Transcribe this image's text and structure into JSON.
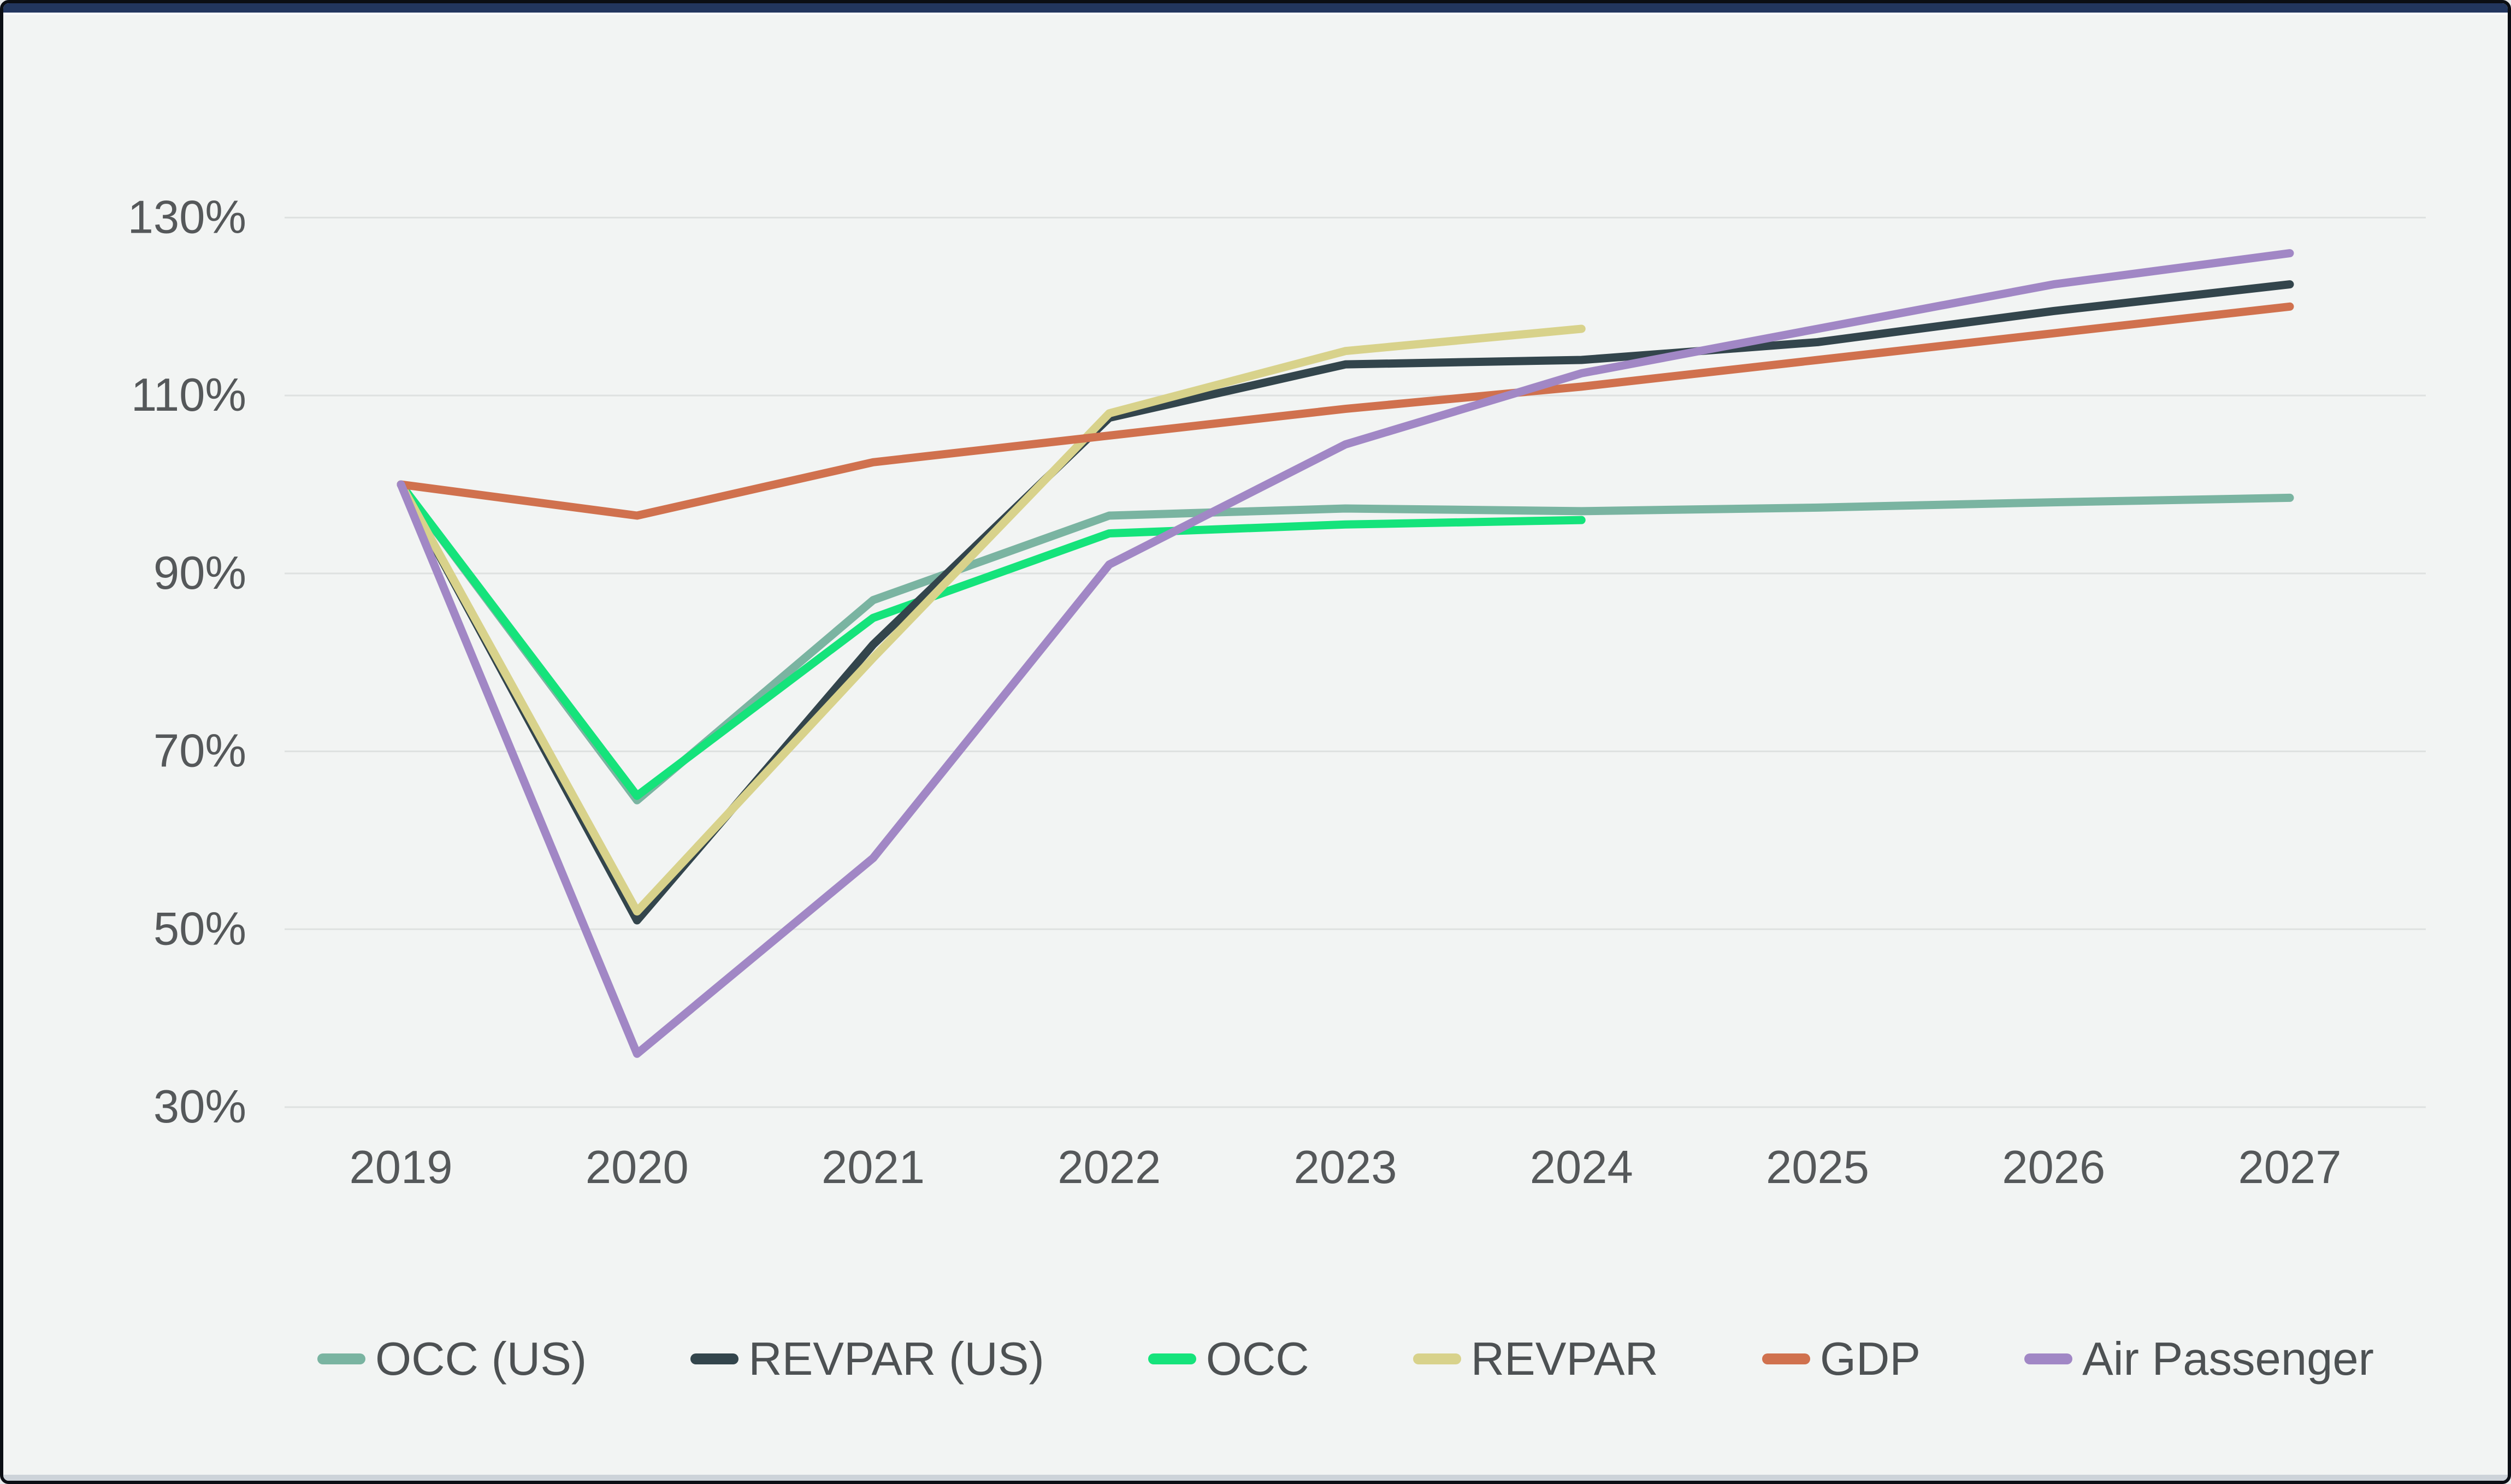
{
  "window": {
    "topbar_color": "#22365e",
    "background_color": "#f2f4f3",
    "border_color": "#0b0e14",
    "bottom_strip_color": "#cdd3d9"
  },
  "chart_data": {
    "type": "line",
    "title": "",
    "xlabel": "",
    "ylabel": "",
    "unit": "%",
    "grid": true,
    "legend_position": "bottom",
    "x_labels": [
      "2019",
      "2020",
      "2021",
      "2022",
      "2023",
      "2024",
      "2025",
      "2026",
      "2027"
    ],
    "y_axis": {
      "range": [
        30,
        130
      ],
      "ticks": [
        {
          "value": 130,
          "label": "130%"
        },
        {
          "value": 110,
          "label": "110%"
        },
        {
          "value": 90,
          "label": "90%"
        },
        {
          "value": 70,
          "label": "70%"
        },
        {
          "value": 50,
          "label": "50%"
        },
        {
          "value": 30,
          "label": "30%"
        }
      ]
    },
    "series": [
      {
        "name": "OCC (US)",
        "color": "#7ab4a1",
        "values": [
          100,
          64.5,
          87,
          96.5,
          97.3,
          97,
          97.4,
          98,
          98.5
        ]
      },
      {
        "name": "REVPAR (US)",
        "color": "#33454c",
        "values": [
          100,
          51,
          82,
          107.5,
          113.5,
          114,
          116,
          119.5,
          122.5
        ]
      },
      {
        "name": "OCC",
        "color": "#15e37b",
        "values": [
          100,
          65,
          85,
          94.5,
          95.5,
          96,
          null,
          null,
          null
        ]
      },
      {
        "name": "REVPAR",
        "color": "#d8d28b",
        "values": [
          100,
          52,
          80.5,
          108,
          115,
          117.5,
          null,
          null,
          null
        ]
      },
      {
        "name": "GDP",
        "color": "#d0714e",
        "values": [
          100,
          96.5,
          102.5,
          105.5,
          108.5,
          111,
          114,
          117,
          120
        ]
      },
      {
        "name": "Air Passenger",
        "color": "#a187c5",
        "values": [
          100,
          36,
          58,
          91,
          104.5,
          112.5,
          117.5,
          122.5,
          126
        ]
      }
    ],
    "draw_order": [
      "OCC (US)",
      "OCC",
      "REVPAR (US)",
      "REVPAR",
      "GDP",
      "Air Passenger"
    ]
  }
}
